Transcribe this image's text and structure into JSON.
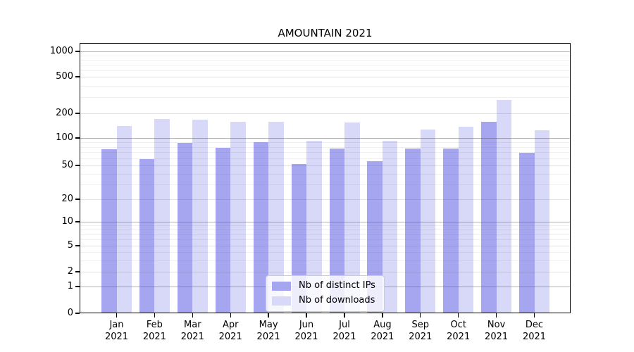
{
  "chart_data": {
    "type": "bar",
    "title": "AMOUNTAIN 2021",
    "categories": [
      "Jan 2021",
      "Feb 2021",
      "Mar 2021",
      "Apr 2021",
      "May 2021",
      "Jun 2021",
      "Jul 2021",
      "Aug 2021",
      "Sep 2021",
      "Oct 2021",
      "Nov 2021",
      "Dec 2021"
    ],
    "series": [
      {
        "name": "Nb of distinct IPs",
        "color": "#a5a5f0",
        "values": [
          75,
          59,
          89,
          78,
          90,
          52,
          77,
          56,
          76,
          76,
          157,
          69
        ]
      },
      {
        "name": "Nb of downloads",
        "color": "#d8d8f8",
        "values": [
          140,
          170,
          168,
          157,
          157,
          93,
          155,
          93,
          127,
          137,
          280,
          124
        ]
      }
    ],
    "xlabel": "",
    "ylabel": "",
    "yscale": "symlog",
    "yticks": [
      0,
      1,
      2,
      5,
      10,
      20,
      50,
      100,
      200,
      500,
      1000
    ],
    "ylim": [
      0,
      1250
    ],
    "grid": true,
    "legend_position": "lower center"
  }
}
